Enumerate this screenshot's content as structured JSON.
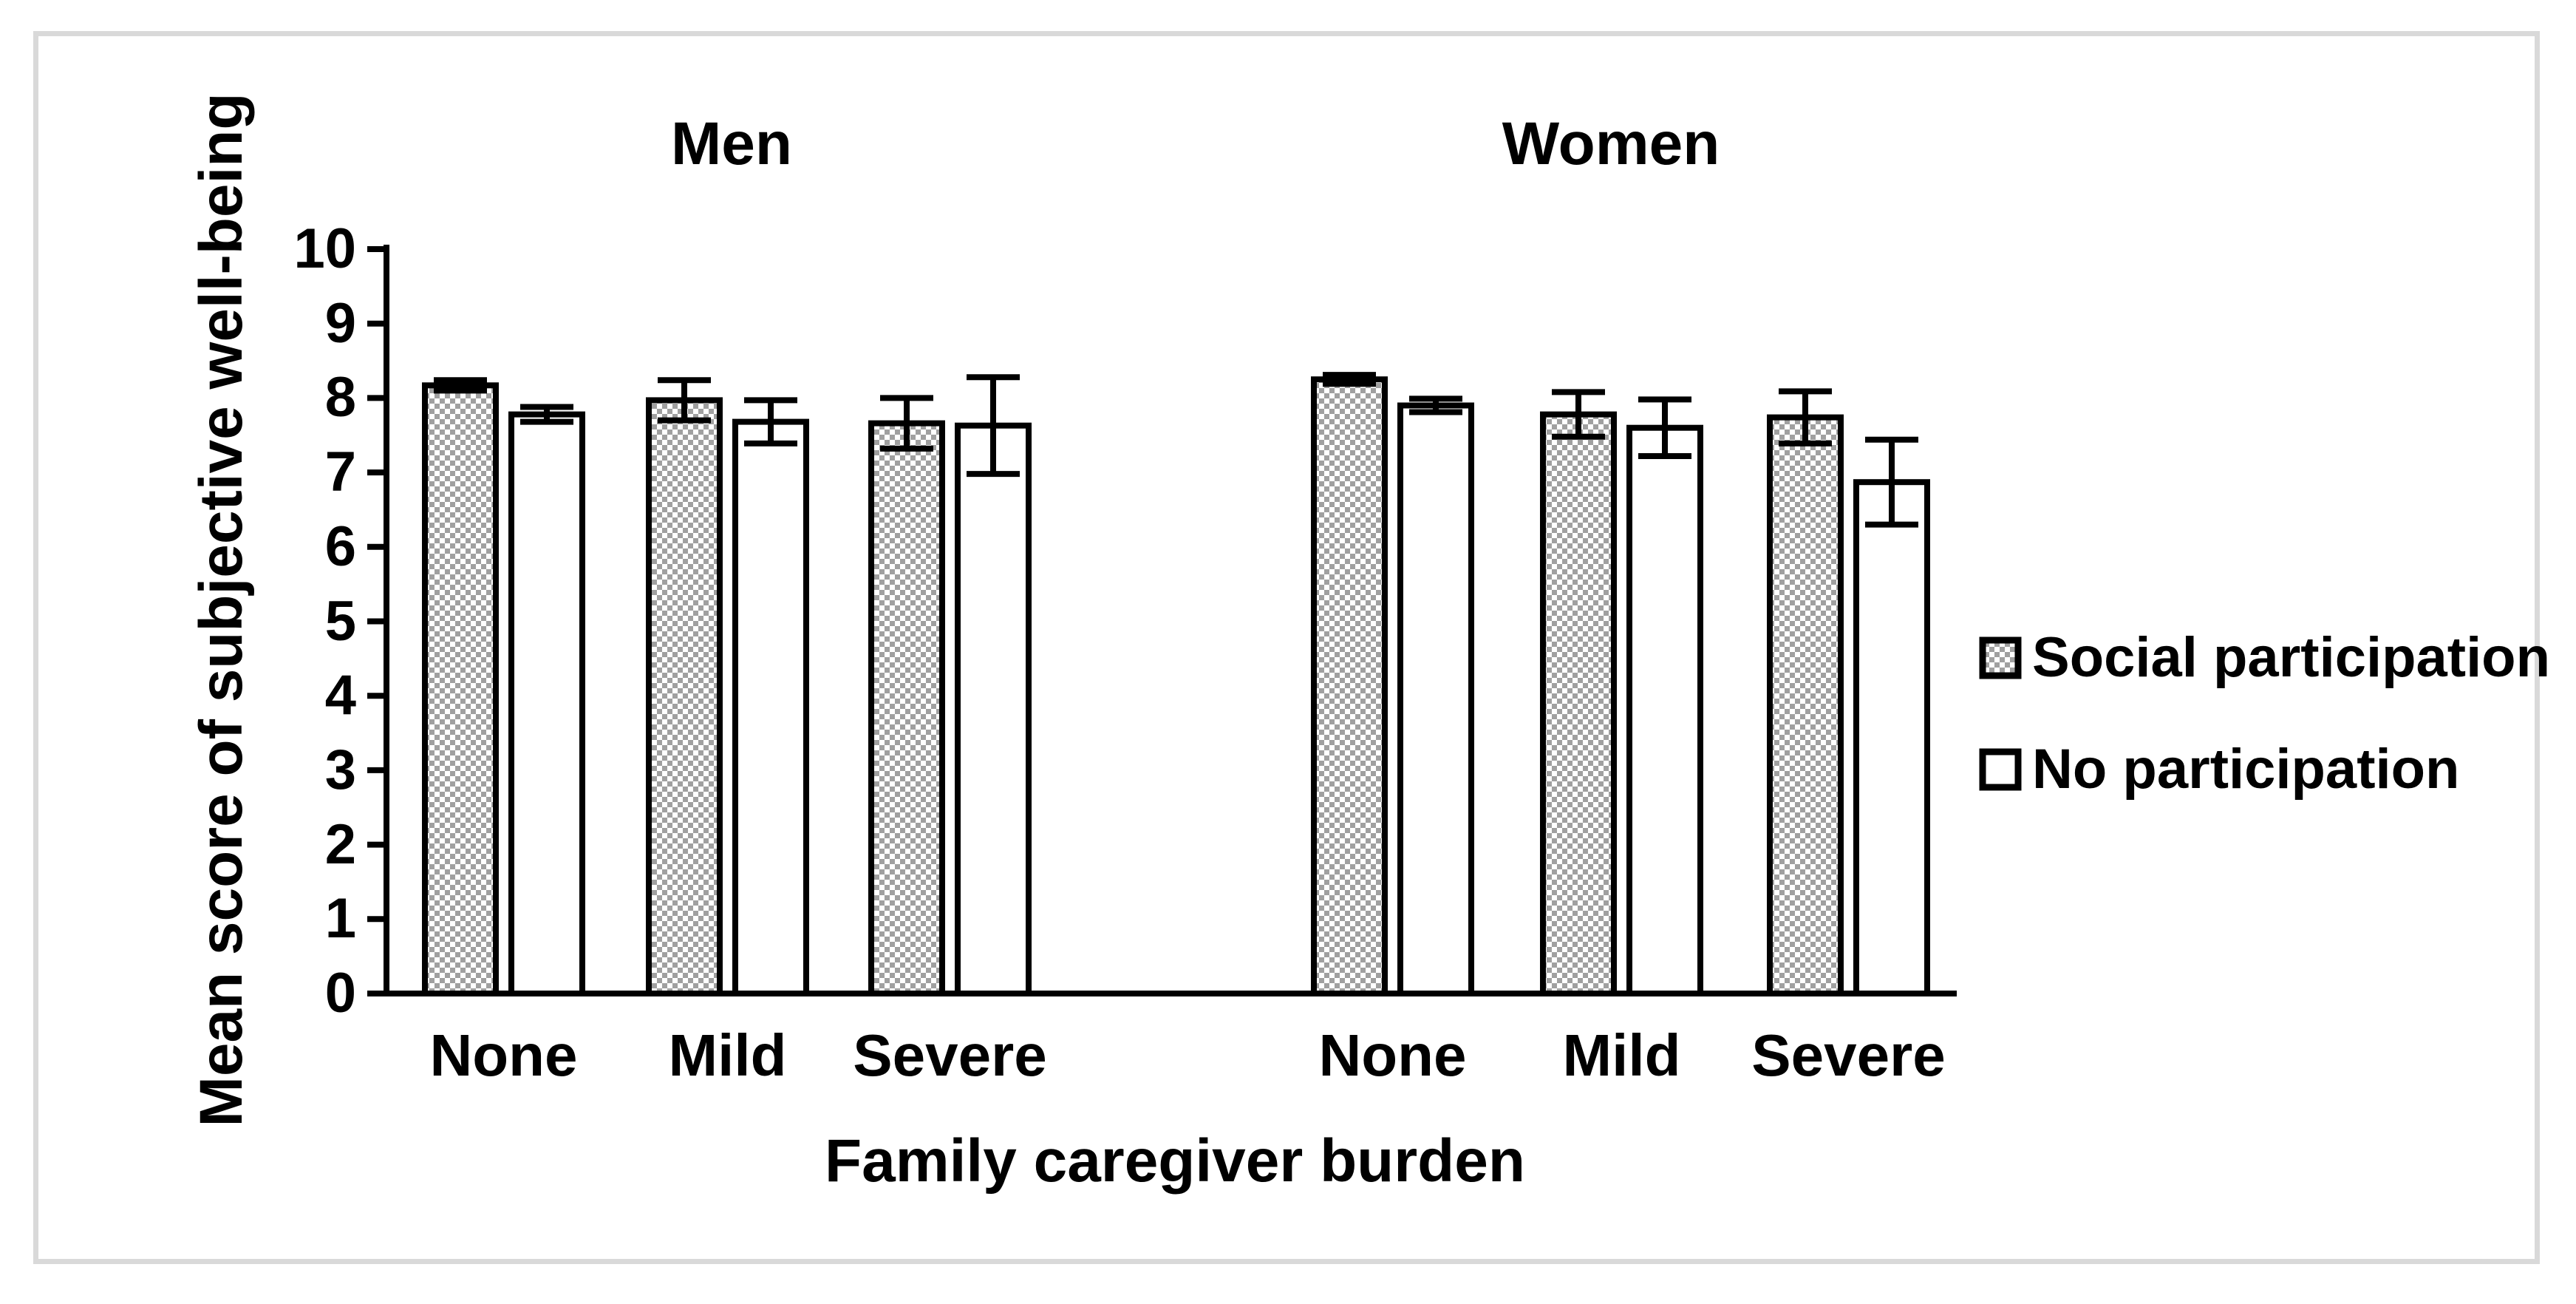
{
  "figure": {
    "background_color": "#ffffff",
    "border_color": "#d9d9d9",
    "bar_outline_color": "#000000",
    "hatch_gray": "#a0a0a0"
  },
  "chart_data": {
    "type": "bar",
    "title": "",
    "xlabel": "Family caregiver burden",
    "ylabel": "Mean score of subjective well-being",
    "group_titles": [
      "Men",
      "Women"
    ],
    "categories": [
      "None",
      "Mild",
      "Severe"
    ],
    "yticks": [
      0,
      1,
      2,
      3,
      4,
      5,
      6,
      7,
      8,
      9,
      10
    ],
    "ylim": [
      0,
      10
    ],
    "grid": false,
    "legend_position": "right",
    "error_bars": true,
    "series": [
      {
        "name": "Social participation",
        "fill": "hatched",
        "values": [
          [
            8.17,
            7.97,
            7.66
          ],
          [
            8.25,
            7.78,
            7.74
          ]
        ],
        "errors": [
          [
            0.07,
            0.27,
            0.34
          ],
          [
            0.06,
            0.3,
            0.35
          ]
        ]
      },
      {
        "name": "No participation",
        "fill": "white",
        "values": [
          [
            7.78,
            7.68,
            7.63
          ],
          [
            7.9,
            7.6,
            6.87
          ]
        ],
        "errors": [
          [
            0.1,
            0.29,
            0.65
          ],
          [
            0.09,
            0.38,
            0.57
          ]
        ]
      }
    ]
  }
}
